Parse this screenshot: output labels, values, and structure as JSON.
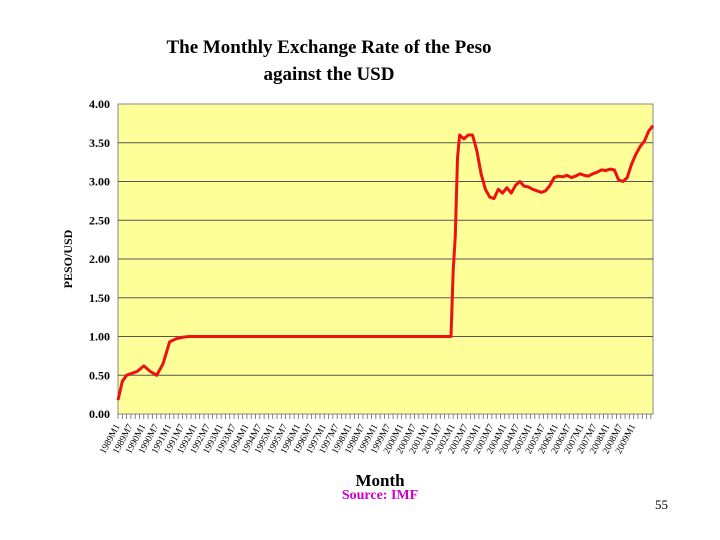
{
  "slide": {
    "number": "55"
  },
  "footer": {
    "source": "Source: IMF"
  },
  "colors": {
    "plot_background": "#ffff99",
    "line": "#ee1111",
    "grid": "#555555",
    "source_text": "#cc00cc"
  },
  "chart_data": {
    "type": "line",
    "title_line1": "The Monthly Exchange Rate of the Peso",
    "title_line2": "against the USD",
    "xlabel": "Month",
    "ylabel": "PESO/USD",
    "ylim": [
      0,
      4
    ],
    "yticks": [
      "0.00",
      "0.50",
      "1.00",
      "1.50",
      "2.00",
      "2.50",
      "3.00",
      "3.50",
      "4.00"
    ],
    "grid": "horizontal",
    "legend": "none",
    "xticks": [
      "1989M1",
      "1989M7",
      "1990M1",
      "1990M7",
      "1991M1",
      "1991M7",
      "1992M1",
      "1992M7",
      "1993M1",
      "1993M7",
      "1994M1",
      "1994M7",
      "1995M1",
      "1995M7",
      "1996M1",
      "1996M7",
      "1997M1",
      "1997M7",
      "1998M1",
      "1998M7",
      "1999M1",
      "1999M7",
      "2000M1",
      "2000M7",
      "2001M1",
      "2001M7",
      "2002M1",
      "2002M7",
      "2003M1",
      "2003M7",
      "2004M1",
      "2004M7",
      "2005M1",
      "2005M7",
      "2006M1",
      "2006M7",
      "2007M1",
      "2007M7",
      "2008M1",
      "2008M7",
      "2009M1"
    ],
    "series": [
      {
        "x": [
          "1989M1",
          "1989M3",
          "1989M5",
          "1989M7",
          "1989M10",
          "1990M1",
          "1990M4",
          "1990M7",
          "1990M10",
          "1991M1",
          "1991M4",
          "1991M7",
          "1991M10",
          "1992M1",
          "1993M1",
          "1994M1",
          "1995M1",
          "1996M1",
          "1997M1",
          "1998M1",
          "1999M1",
          "2000M1",
          "2001M1",
          "2001M12",
          "2002M1",
          "2002M2",
          "2002M3",
          "2002M4",
          "2002M6",
          "2002M8",
          "2002M10",
          "2002M12",
          "2003M2",
          "2003M4",
          "2003M6",
          "2003M8",
          "2003M10",
          "2003M12",
          "2004M2",
          "2004M4",
          "2004M6",
          "2004M8",
          "2004M10",
          "2004M12",
          "2005M2",
          "2005M4",
          "2005M6",
          "2005M8",
          "2005M10",
          "2005M12",
          "2006M2",
          "2006M4",
          "2006M6",
          "2006M8",
          "2006M10",
          "2006M12",
          "2007M2",
          "2007M4",
          "2007M6",
          "2007M8",
          "2007M10",
          "2007M12",
          "2008M2",
          "2008M4",
          "2008M6",
          "2008M8",
          "2008M10",
          "2008M12",
          "2009M2",
          "2009M4",
          "2009M6",
          "2009M8",
          "2009M10"
        ],
        "values": [
          0.18,
          0.42,
          0.5,
          0.52,
          0.55,
          0.62,
          0.55,
          0.5,
          0.65,
          0.93,
          0.97,
          0.99,
          1.0,
          1.0,
          1.0,
          1.0,
          1.0,
          1.0,
          1.0,
          1.0,
          1.0,
          1.0,
          1.0,
          1.0,
          1.85,
          2.3,
          3.3,
          3.6,
          3.55,
          3.6,
          3.6,
          3.4,
          3.1,
          2.9,
          2.8,
          2.78,
          2.9,
          2.85,
          2.92,
          2.85,
          2.95,
          3.0,
          2.94,
          2.93,
          2.9,
          2.88,
          2.86,
          2.88,
          2.95,
          3.05,
          3.07,
          3.06,
          3.08,
          3.05,
          3.07,
          3.1,
          3.08,
          3.07,
          3.1,
          3.12,
          3.15,
          3.14,
          3.16,
          3.15,
          3.02,
          3.0,
          3.05,
          3.22,
          3.35,
          3.45,
          3.52,
          3.65,
          3.72
        ]
      }
    ]
  }
}
